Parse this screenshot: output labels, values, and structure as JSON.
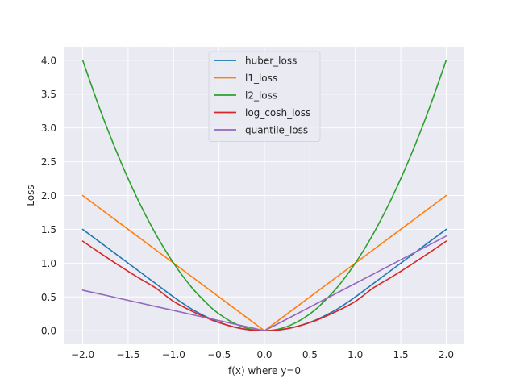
{
  "chart_data": {
    "type": "line",
    "title": "",
    "xlabel": "f(x) where y=0",
    "ylabel": "Loss",
    "xlim": [
      -2.2,
      2.2
    ],
    "ylim": [
      -0.2,
      4.2
    ],
    "xticks": [
      -2.0,
      -1.5,
      -1.0,
      -0.5,
      0.0,
      0.5,
      1.0,
      1.5,
      2.0
    ],
    "xtick_labels": [
      "−2.0",
      "−1.5",
      "−1.0",
      "−0.5",
      "0.0",
      "0.5",
      "1.0",
      "1.5",
      "2.0"
    ],
    "yticks": [
      0.0,
      0.5,
      1.0,
      1.5,
      2.0,
      2.5,
      3.0,
      3.5,
      4.0
    ],
    "ytick_labels": [
      "0.0",
      "0.5",
      "1.0",
      "1.5",
      "2.0",
      "2.5",
      "3.0",
      "3.5",
      "4.0"
    ],
    "grid": true,
    "background": "#eaeaf2",
    "legend_position": "top-center",
    "x": [
      -2.0,
      -1.8,
      -1.6,
      -1.4,
      -1.2,
      -1.0,
      -0.8,
      -0.6,
      -0.5,
      -0.4,
      -0.3,
      -0.2,
      -0.1,
      0.0,
      0.1,
      0.2,
      0.3,
      0.4,
      0.5,
      0.6,
      0.8,
      1.0,
      1.2,
      1.4,
      1.6,
      1.8,
      2.0
    ],
    "series": [
      {
        "name": "huber_loss",
        "color": "#1f77b4",
        "values": [
          1.5,
          1.3,
          1.1,
          0.9,
          0.7,
          0.5,
          0.32,
          0.18,
          0.125,
          0.08,
          0.045,
          0.02,
          0.005,
          0.0,
          0.005,
          0.02,
          0.045,
          0.08,
          0.125,
          0.18,
          0.32,
          0.5,
          0.7,
          0.9,
          1.1,
          1.3,
          1.5
        ]
      },
      {
        "name": "l1_loss",
        "color": "#ff7f0e",
        "values": [
          2.0,
          1.8,
          1.6,
          1.4,
          1.2,
          1.0,
          0.8,
          0.6,
          0.5,
          0.4,
          0.3,
          0.2,
          0.1,
          0.0,
          0.1,
          0.2,
          0.3,
          0.4,
          0.5,
          0.6,
          0.8,
          1.0,
          1.2,
          1.4,
          1.6,
          1.8,
          2.0
        ]
      },
      {
        "name": "l2_loss",
        "color": "#2ca02c",
        "values": [
          4.0,
          3.24,
          2.56,
          1.96,
          1.44,
          1.0,
          0.64,
          0.36,
          0.25,
          0.16,
          0.09,
          0.04,
          0.01,
          0.0,
          0.01,
          0.04,
          0.09,
          0.16,
          0.25,
          0.36,
          0.64,
          1.0,
          1.44,
          1.96,
          2.56,
          3.24,
          4.0
        ]
      },
      {
        "name": "log_cosh_loss",
        "color": "#d62728",
        "values": [
          1.325,
          1.142,
          0.965,
          0.795,
          0.635,
          0.434,
          0.291,
          0.17,
          0.12,
          0.078,
          0.044,
          0.02,
          0.005,
          0.0,
          0.005,
          0.02,
          0.044,
          0.078,
          0.12,
          0.17,
          0.291,
          0.434,
          0.635,
          0.795,
          0.965,
          1.142,
          1.325
        ]
      },
      {
        "name": "quantile_loss",
        "color": "#9467bd",
        "values": [
          0.6,
          0.54,
          0.48,
          0.42,
          0.36,
          0.3,
          0.24,
          0.18,
          0.15,
          0.12,
          0.09,
          0.06,
          0.03,
          0.0,
          0.07,
          0.14,
          0.21,
          0.28,
          0.35,
          0.42,
          0.56,
          0.7,
          0.84,
          0.98,
          1.12,
          1.26,
          1.4
        ]
      }
    ]
  }
}
